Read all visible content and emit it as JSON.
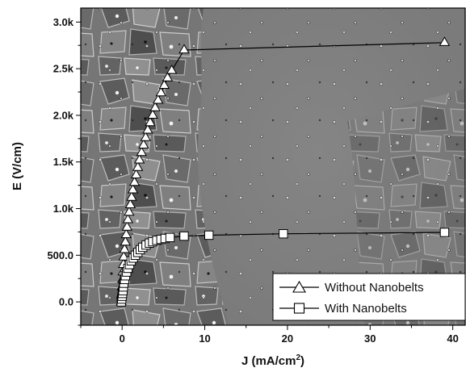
{
  "chart_data": {
    "type": "scatter",
    "xlabel": "J (mA/cm",
    "xlabel_sup": "2",
    "xlabel_end": ")",
    "ylabel": "E (V/cm)",
    "xlim": [
      -5,
      41.5
    ],
    "ylim": [
      -250,
      3150
    ],
    "xticks": [
      0,
      10,
      20,
      30,
      40
    ],
    "xtick_labels": [
      "0",
      "10",
      "20",
      "30",
      "40"
    ],
    "yticks": [
      0,
      500,
      1000,
      1500,
      2000,
      2500,
      3000
    ],
    "ytick_labels": [
      "0.0",
      "500.0",
      "1.0k",
      "1.5k",
      "2.0k",
      "2.5k",
      "3.0k"
    ],
    "grid": false,
    "legend_position": "bottom-right",
    "background": "SEM micrograph of grain microstructure",
    "series": [
      {
        "name": "Without Nanobelts",
        "marker": "triangle",
        "x": [
          -0.1,
          -0.05,
          0.0,
          0.05,
          0.1,
          0.15,
          0.2,
          0.3,
          0.4,
          0.5,
          0.6,
          0.7,
          0.85,
          1.0,
          1.15,
          1.3,
          1.5,
          1.7,
          1.9,
          2.1,
          2.35,
          2.6,
          2.85,
          3.1,
          3.4,
          3.7,
          4.0,
          4.35,
          4.7,
          5.1,
          5.5,
          6.0,
          7.5,
          39.0
        ],
        "y": [
          0,
          80,
          160,
          240,
          320,
          400,
          480,
          560,
          640,
          720,
          800,
          880,
          960,
          1040,
          1120,
          1200,
          1280,
          1360,
          1440,
          1520,
          1600,
          1680,
          1760,
          1840,
          1920,
          2000,
          2080,
          2160,
          2240,
          2320,
          2400,
          2480,
          2700,
          2780
        ]
      },
      {
        "name": "With Nanobelts",
        "marker": "square",
        "x": [
          -0.1,
          -0.05,
          0.0,
          0.05,
          0.1,
          0.15,
          0.2,
          0.3,
          0.4,
          0.55,
          0.7,
          0.9,
          1.1,
          1.35,
          1.6,
          1.9,
          2.2,
          2.5,
          2.9,
          3.3,
          3.7,
          4.2,
          4.7,
          5.2,
          5.8,
          7.5,
          10.5,
          19.5,
          39.0
        ],
        "y": [
          0,
          30,
          60,
          90,
          120,
          160,
          200,
          240,
          280,
          320,
          360,
          400,
          440,
          470,
          500,
          530,
          560,
          585,
          610,
          630,
          645,
          660,
          670,
          680,
          690,
          705,
          715,
          730,
          745
        ]
      }
    ]
  }
}
